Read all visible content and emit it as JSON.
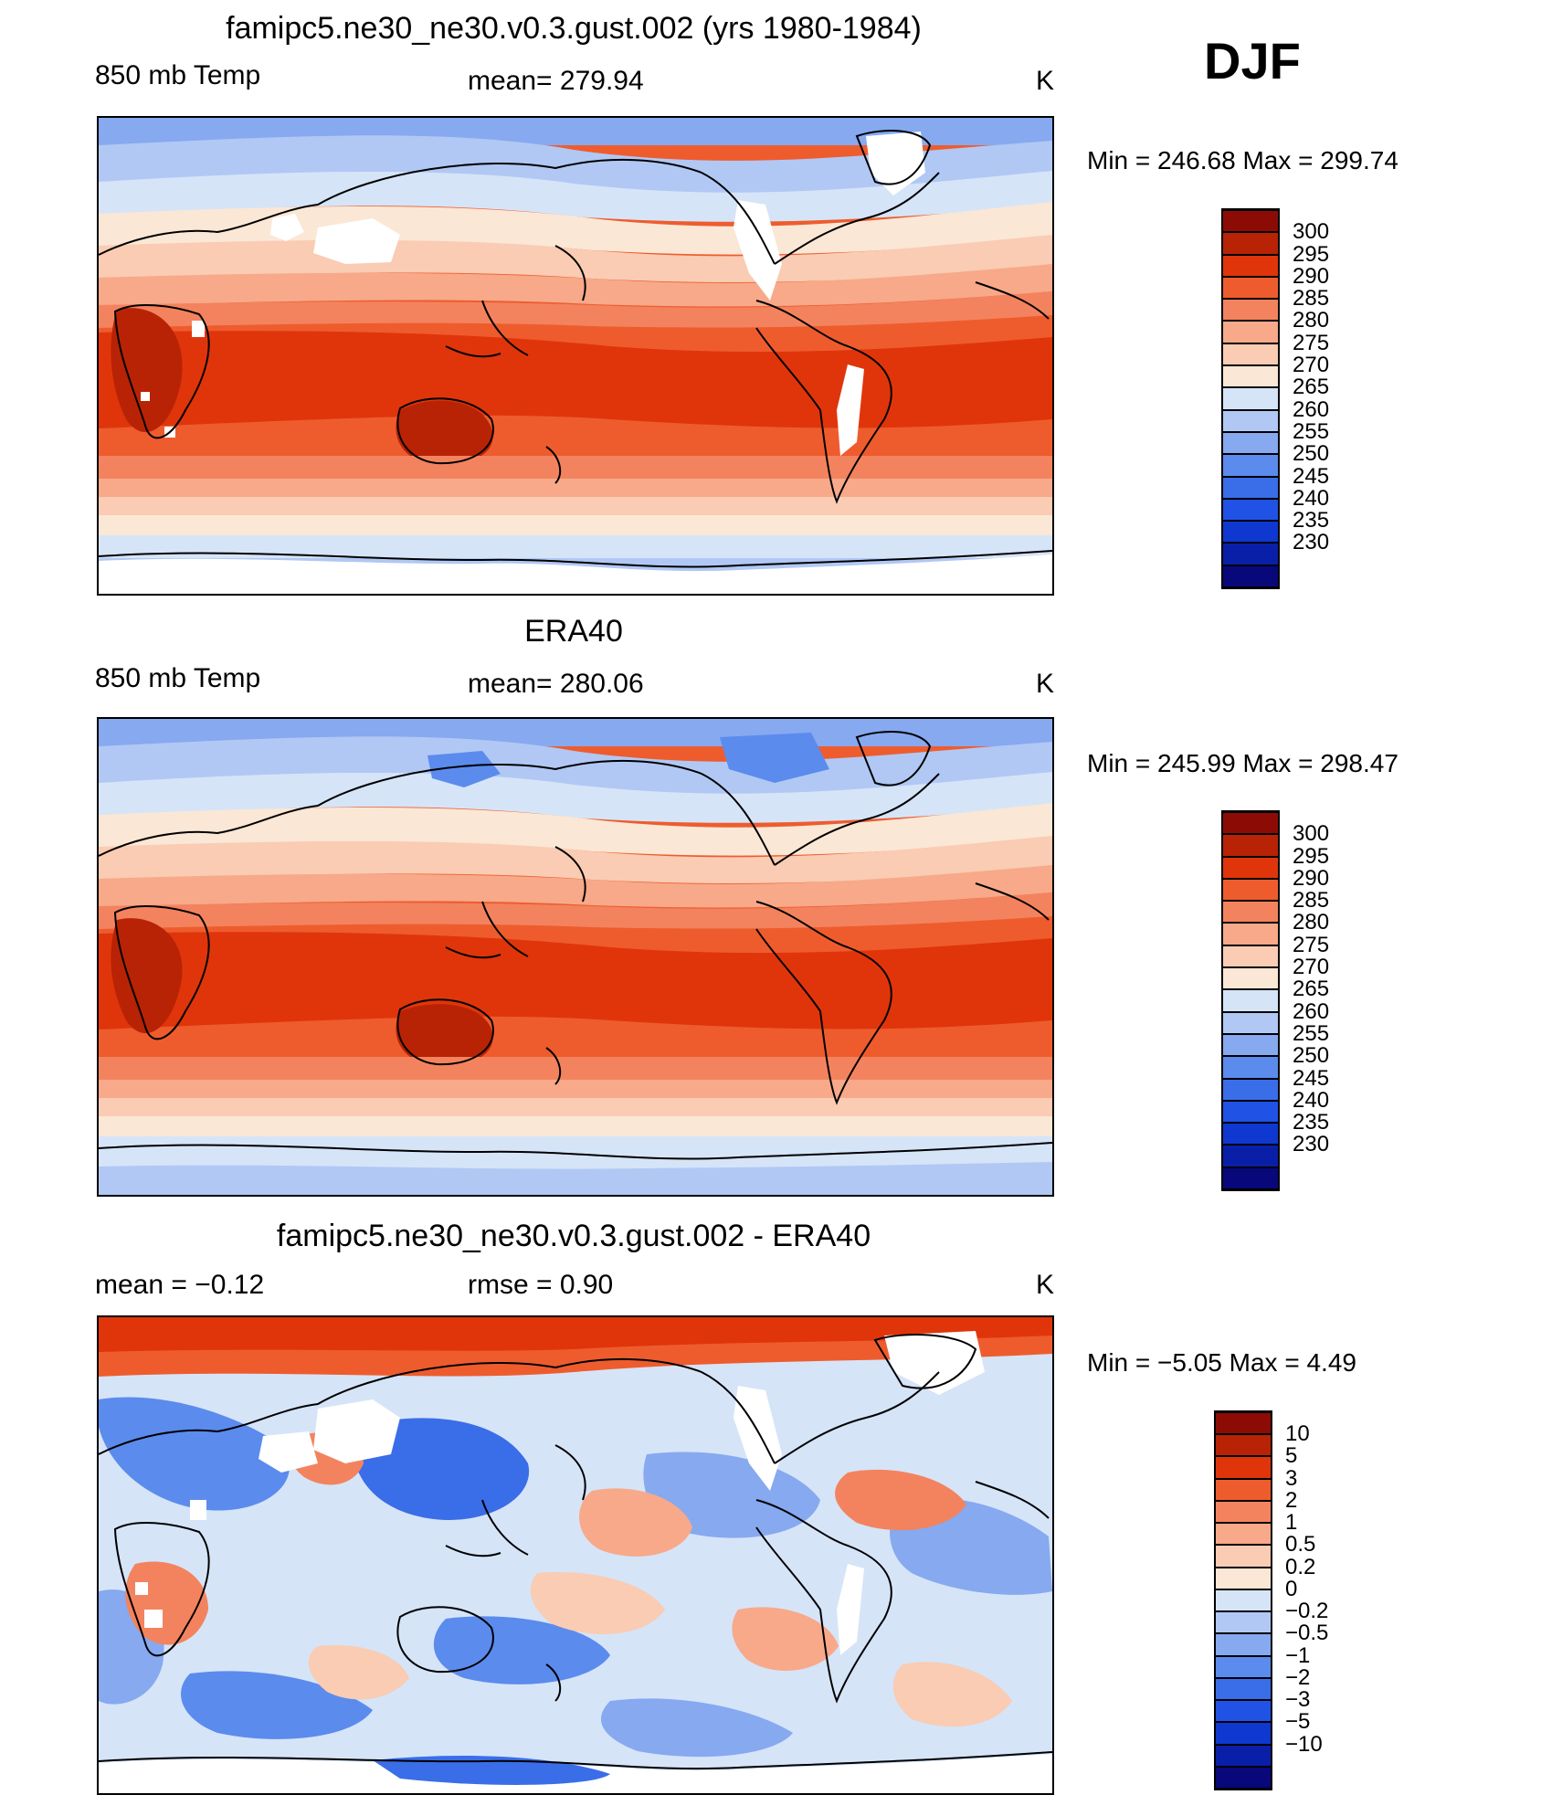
{
  "season": "DJF",
  "colors": {
    "temp": [
      "#08087a",
      "#0a1fa8",
      "#0f38d0",
      "#2052e6",
      "#3a6de8",
      "#5b8bed",
      "#86a9f0",
      "#b1c8f4",
      "#d6e4f8",
      "#fbe7d5",
      "#f9ccb3",
      "#f7a98a",
      "#f3835e",
      "#ee5c2e",
      "#e0350b",
      "#b82305",
      "#8c0c05"
    ],
    "diff": [
      "#08087a",
      "#0a1fa8",
      "#0f38d0",
      "#2052e6",
      "#3a6de8",
      "#5b8bed",
      "#86a9f0",
      "#b1c8f4",
      "#d6e4f8",
      "#fbe7d5",
      "#f9ccb3",
      "#f7a98a",
      "#f3835e",
      "#ee5c2e",
      "#e0350b",
      "#b82305",
      "#8c0c05"
    ]
  },
  "panels": [
    {
      "title": "famipc5.ne30_ne30.v0.3.gust.002 (yrs 1980-1984)",
      "left_label": "850 mb Temp",
      "center_label": "mean=  279.94",
      "units": "K",
      "minmax": "Min  =  246.68  Max  =  299.74",
      "colorbar_labels": [
        "300",
        "295",
        "290",
        "285",
        "280",
        "275",
        "270",
        "265",
        "260",
        "255",
        "250",
        "245",
        "240",
        "235",
        "230"
      ]
    },
    {
      "title": "ERA40",
      "left_label": "850 mb Temp",
      "center_label": "mean=  280.06",
      "units": "K",
      "minmax": "Min  =  245.99  Max  =  298.47",
      "colorbar_labels": [
        "300",
        "295",
        "290",
        "285",
        "280",
        "275",
        "270",
        "265",
        "260",
        "255",
        "250",
        "245",
        "240",
        "235",
        "230"
      ]
    },
    {
      "title": "famipc5.ne30_ne30.v0.3.gust.002 - ERA40",
      "left_label": "mean  =    −0.12",
      "center_label": "rmse  =     0.90",
      "units": "K",
      "minmax": "Min  =    −5.05  Max  =       4.49",
      "colorbar_labels": [
        "10",
        "5",
        "3",
        "2",
        "1",
        "0.5",
        "0.2",
        "0",
        "−0.2",
        "−0.5",
        "−1",
        "−2",
        "−3",
        "−5",
        "−10"
      ]
    }
  ]
}
